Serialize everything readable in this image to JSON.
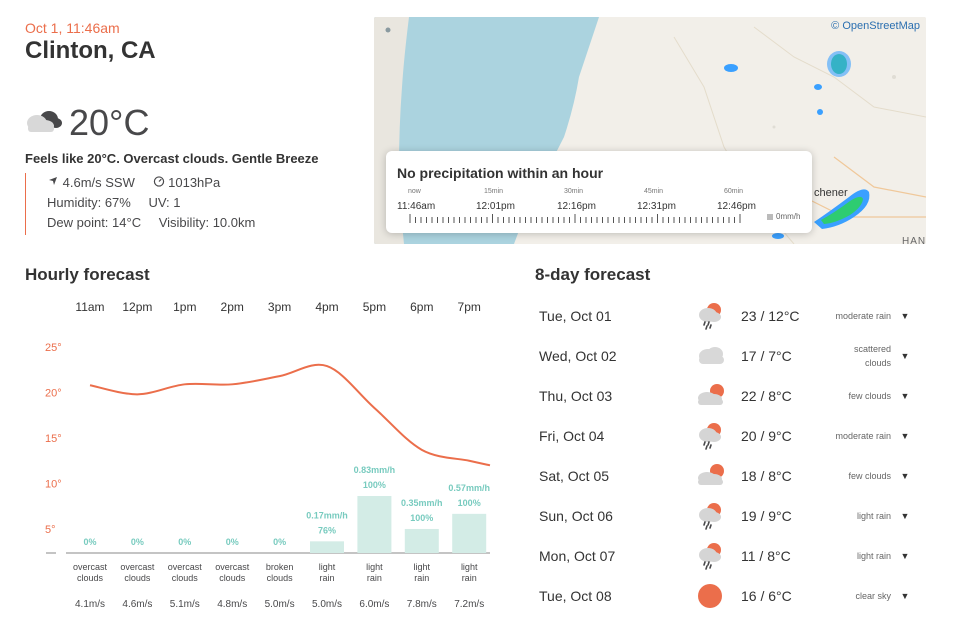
{
  "current": {
    "datetime": "Oct 1, 11:46am",
    "location": "Clinton, CA",
    "temperature": "20°C",
    "icon": "overcast-clouds-icon",
    "summary": "Feels like 20°C. Overcast clouds. Gentle Breeze",
    "wind": "4.6m/s SSW",
    "pressure": "1013hPa",
    "humidity_label": "Humidity:",
    "humidity": "67%",
    "uv_label": "UV:",
    "uv": "1",
    "dew_label": "Dew point:",
    "dew": "14°C",
    "visibility_label": "Visibility:",
    "visibility": "10.0km"
  },
  "map": {
    "attribution": "© OpenStreetMap",
    "city_label": "chener",
    "corner_label": "HAN",
    "precipitation": {
      "title": "No precipitation within an hour",
      "ticks": [
        {
          "offset": "now",
          "time": "11:46am"
        },
        {
          "offset": "15min",
          "time": "12:01pm"
        },
        {
          "offset": "30min",
          "time": "12:16pm"
        },
        {
          "offset": "45min",
          "time": "12:31pm"
        },
        {
          "offset": "60min",
          "time": "12:46pm"
        }
      ],
      "legend": "0mm/h"
    }
  },
  "hourly": {
    "title": "Hourly forecast",
    "hours": [
      "11am",
      "12pm",
      "1pm",
      "2pm",
      "3pm",
      "4pm",
      "5pm",
      "6pm",
      "7pm"
    ],
    "conditions": [
      "overcast\nclouds",
      "overcast\nclouds",
      "overcast\nclouds",
      "overcast\nclouds",
      "broken\nclouds",
      "light\nrain",
      "light\nrain",
      "light\nrain",
      "light\nrain"
    ],
    "winds": [
      "4.1m/s",
      "4.6m/s",
      "5.1m/s",
      "4.8m/s",
      "5.0m/s",
      "5.0m/s",
      "6.0m/s",
      "7.8m/s",
      "7.2m/s"
    ]
  },
  "chart_data": {
    "type": "line",
    "x": [
      "11am",
      "12pm",
      "1pm",
      "2pm",
      "3pm",
      "4pm",
      "5pm",
      "6pm",
      "7pm"
    ],
    "y_ticks": [
      "25°",
      "20°",
      "15°",
      "10°",
      "5°"
    ],
    "ylim": [
      0,
      25
    ],
    "series": [
      {
        "values": [
          20.8,
          19.8,
          20.9,
          20.9,
          21.8,
          22.9,
          18.3,
          13.7,
          12.5
        ]
      }
    ],
    "bars": [
      {
        "precip": "",
        "prob": "0%",
        "value": 0
      },
      {
        "precip": "",
        "prob": "0%",
        "value": 0
      },
      {
        "precip": "",
        "prob": "0%",
        "value": 0
      },
      {
        "precip": "",
        "prob": "0%",
        "value": 0
      },
      {
        "precip": "",
        "prob": "0%",
        "value": 0
      },
      {
        "precip": "0.17mm/h",
        "prob": "76%",
        "value": 0.17
      },
      {
        "precip": "0.83mm/h",
        "prob": "100%",
        "value": 0.83
      },
      {
        "precip": "0.35mm/h",
        "prob": "100%",
        "value": 0.35
      },
      {
        "precip": "0.57mm/h",
        "prob": "100%",
        "value": 0.57
      }
    ],
    "colors": {
      "line": "#eb6e4b",
      "bar": "#d3ece6",
      "bar_text": "#78cbbf"
    }
  },
  "daily": {
    "title": "8-day forecast",
    "days": [
      {
        "day": "Tue, Oct 01",
        "temps": "23 / 12°C",
        "desc": "moderate rain",
        "icon": "rain-icon"
      },
      {
        "day": "Wed, Oct 02",
        "temps": "17 / 7°C",
        "desc": "scattered\nclouds",
        "icon": "clouds-icon"
      },
      {
        "day": "Thu, Oct 03",
        "temps": "22 / 8°C",
        "desc": "few clouds",
        "icon": "sun-cloud-icon"
      },
      {
        "day": "Fri, Oct 04",
        "temps": "20 / 9°C",
        "desc": "moderate rain",
        "icon": "rain-icon"
      },
      {
        "day": "Sat, Oct 05",
        "temps": "18 / 8°C",
        "desc": "few clouds",
        "icon": "sun-cloud-icon"
      },
      {
        "day": "Sun, Oct 06",
        "temps": "19 / 9°C",
        "desc": "light rain",
        "icon": "rain-icon"
      },
      {
        "day": "Mon, Oct 07",
        "temps": "11 / 8°C",
        "desc": "light rain",
        "icon": "rain-icon"
      },
      {
        "day": "Tue, Oct 08",
        "temps": "16 / 6°C",
        "desc": "clear sky",
        "icon": "sun-icon"
      }
    ]
  },
  "colors": {
    "accent": "#eb6e4b",
    "text": "#48484a"
  }
}
